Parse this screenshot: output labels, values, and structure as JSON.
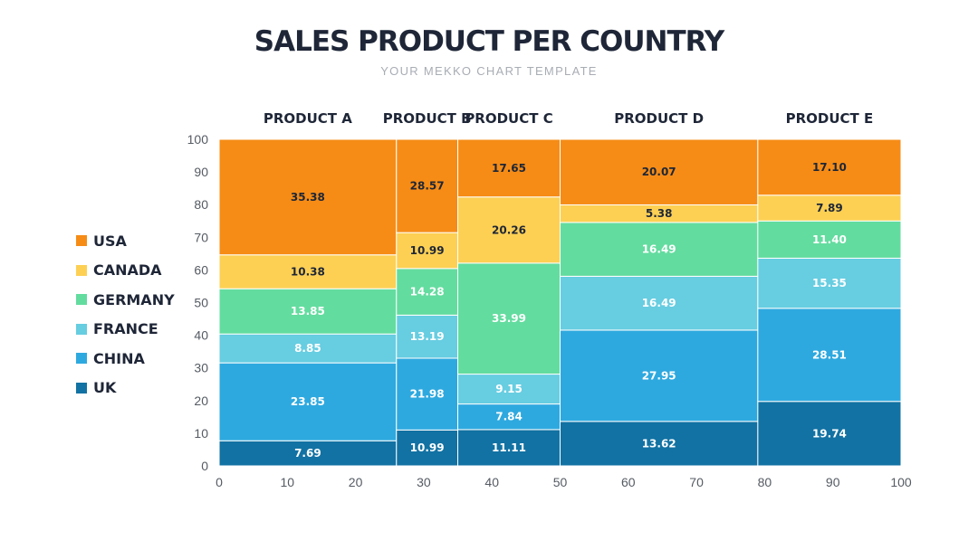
{
  "header": {
    "title": "SALES PRODUCT PER COUNTRY",
    "subtitle": "YOUR MEKKO CHART TEMPLATE"
  },
  "legend": [
    {
      "label": "USA",
      "color": "#f68c16"
    },
    {
      "label": "CANADA",
      "color": "#fdd054"
    },
    {
      "label": "GERMANY",
      "color": "#63dc9f"
    },
    {
      "label": "FRANCE",
      "color": "#67cde1"
    },
    {
      "label": "CHINA",
      "color": "#2ea9df"
    },
    {
      "label": "UK",
      "color": "#1272a3"
    }
  ],
  "chart_data": {
    "type": "bar",
    "subtype": "marimekko",
    "title": "SALES PRODUCT PER COUNTRY",
    "subtitle": "YOUR MEKKO CHART TEMPLATE",
    "categories": [
      "PRODUCT A",
      "PRODUCT B",
      "PRODUCT C",
      "PRODUCT D",
      "PRODUCT E"
    ],
    "column_ranges": [
      [
        0,
        26
      ],
      [
        26,
        35
      ],
      [
        35,
        50
      ],
      [
        50,
        79
      ],
      [
        79,
        100
      ]
    ],
    "series": [
      {
        "name": "UK",
        "color": "#1272a3",
        "values": [
          7.69,
          10.99,
          11.11,
          13.62,
          19.74
        ]
      },
      {
        "name": "CHINA",
        "color": "#2ea9df",
        "values": [
          23.85,
          21.98,
          7.84,
          27.95,
          28.51
        ]
      },
      {
        "name": "FRANCE",
        "color": "#67cde1",
        "values": [
          8.85,
          13.19,
          9.15,
          16.49,
          15.35
        ]
      },
      {
        "name": "GERMANY",
        "color": "#63dc9f",
        "values": [
          13.85,
          14.28,
          33.99,
          16.49,
          11.4
        ]
      },
      {
        "name": "CANADA",
        "color": "#fdd054",
        "values": [
          10.38,
          10.99,
          20.26,
          5.38,
          7.89
        ]
      },
      {
        "name": "USA",
        "color": "#f68c16",
        "values": [
          35.38,
          28.57,
          17.65,
          20.07,
          17.1
        ]
      }
    ],
    "label_colors": {
      "UK": "#ffffff",
      "CHINA": "#ffffff",
      "FRANCE": "#ffffff",
      "GERMANY": "#ffffff",
      "CANADA": "#1e2637",
      "USA": "#1e2637"
    },
    "value_labels": [
      [
        "7.69",
        "10.99",
        "11.11",
        "13.62",
        "19.74"
      ],
      [
        "23.85",
        "21.98",
        "7.84",
        "27.95",
        "28.51"
      ],
      [
        "8.85",
        "13.19",
        "9.15",
        "16.49",
        "15.35"
      ],
      [
        "13.85",
        "14.28",
        "33.99",
        "16.49",
        "11.40"
      ],
      [
        "10.38",
        "10.99",
        "20.26",
        "5.38",
        "7.89"
      ],
      [
        "35.38",
        "28.57",
        "17.65",
        "20.07",
        "17.10"
      ]
    ],
    "xlim": [
      0,
      100
    ],
    "ylim": [
      0,
      100
    ],
    "xticks": [
      "0",
      "10",
      "20",
      "30",
      "40",
      "50",
      "60",
      "70",
      "80",
      "90",
      "100"
    ],
    "yticks": [
      "0",
      "10",
      "20",
      "30",
      "40",
      "50",
      "60",
      "70",
      "80",
      "90",
      "100"
    ],
    "xlabel": "",
    "ylabel": "",
    "grid": false,
    "legend_position": "left"
  }
}
